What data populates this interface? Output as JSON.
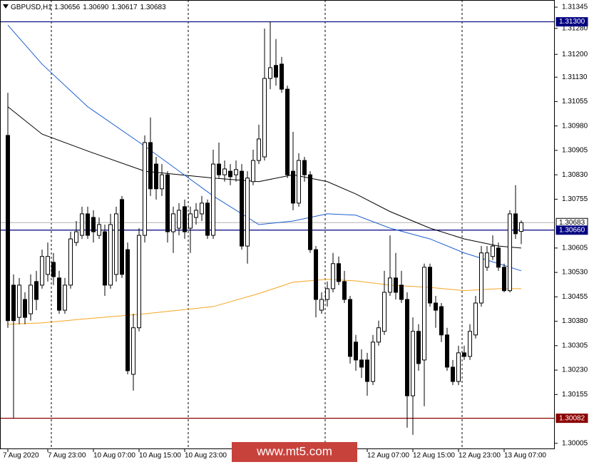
{
  "chart_data": {
    "type": "candlestick",
    "header": {
      "symbol": "GBPUSD,H1",
      "ohlc": [
        "1.30656",
        "1.30690",
        "1.30617",
        "1.30683"
      ]
    },
    "watermark": "www.mt5.com",
    "up_color": "#ffffff",
    "down_color": "#000000",
    "categories": [
      "7 Aug 2020",
      null,
      null,
      null,
      null,
      null,
      null,
      "7 Aug 23:00",
      null,
      null,
      null,
      null,
      null,
      null,
      null,
      "10 Aug 07:00",
      null,
      null,
      null,
      null,
      null,
      null,
      null,
      "10 Aug 15:00",
      null,
      null,
      null,
      null,
      null,
      null,
      null,
      "10 Aug 23:00",
      null,
      null,
      null,
      null,
      null,
      null,
      null,
      null,
      null,
      null,
      null,
      null,
      null,
      null,
      null,
      null,
      null,
      null,
      null,
      null,
      null,
      null,
      null,
      null,
      null,
      null,
      null,
      null,
      null,
      null,
      null,
      "12 Aug 07:00",
      null,
      null,
      null,
      null,
      null,
      null,
      null,
      "12 Aug 15:00",
      null,
      null,
      null,
      null,
      null,
      null,
      null,
      "12 Aug 23:00",
      null,
      null,
      null,
      null,
      null,
      null,
      null,
      "13 Aug 07:00",
      null,
      null,
      null
    ],
    "ohlc": [
      [
        1.30951,
        1.31082,
        1.3036,
        1.30382
      ],
      [
        1.30491,
        1.30524,
        1.30082,
        1.30382
      ],
      [
        1.30392,
        1.30513,
        1.30371,
        1.30491
      ],
      [
        1.30447,
        1.30469,
        1.30371,
        1.30392
      ],
      [
        1.30403,
        1.30524,
        1.30382,
        1.30491
      ],
      [
        1.30502,
        1.30535,
        1.30414,
        1.30447
      ],
      [
        1.30491,
        1.306,
        1.3048,
        1.30579
      ],
      [
        1.30524,
        1.30622,
        1.30502,
        1.30579
      ],
      [
        1.30561,
        1.3059,
        1.30491,
        1.30517
      ],
      [
        1.30513,
        1.30535,
        1.30403,
        1.30414
      ],
      [
        1.30414,
        1.30513,
        1.30403,
        1.30491
      ],
      [
        1.30491,
        1.30655,
        1.3048,
        1.30633
      ],
      [
        1.30622,
        1.30688,
        1.30611,
        1.30655
      ],
      [
        1.30644,
        1.30732,
        1.30633,
        1.3071
      ],
      [
        1.3071,
        1.30732,
        1.30633,
        1.30644
      ],
      [
        1.30699,
        1.30721,
        1.30622,
        1.30655
      ],
      [
        1.30644,
        1.30699,
        1.30633,
        1.30677
      ],
      [
        1.30655,
        1.30677,
        1.30458,
        1.30491
      ],
      [
        1.30491,
        1.3071,
        1.3048,
        1.30677
      ],
      [
        1.30524,
        1.30732,
        1.30502,
        1.3071
      ],
      [
        1.30754,
        1.30765,
        1.30513,
        1.30524
      ],
      [
        1.306,
        1.30622,
        1.30217,
        1.30228
      ],
      [
        1.30217,
        1.30403,
        1.30167,
        1.3036
      ],
      [
        1.3036,
        1.30666,
        1.30349,
        1.30644
      ],
      [
        1.30644,
        1.30951,
        1.30622,
        1.30929
      ],
      [
        1.30929,
        1.31006,
        1.30765,
        1.30787
      ],
      [
        1.30863,
        1.30885,
        1.30754,
        1.30787
      ],
      [
        1.30787,
        1.30863,
        1.30765,
        1.3083
      ],
      [
        1.3083,
        1.30841,
        1.30622,
        1.30655
      ],
      [
        1.30655,
        1.30732,
        1.3059,
        1.3071
      ],
      [
        1.30666,
        1.30743,
        1.30644,
        1.30721
      ],
      [
        1.30732,
        1.30754,
        1.30633,
        1.30655
      ],
      [
        1.30666,
        1.30732,
        1.3059,
        1.3071
      ],
      [
        1.30699,
        1.30743,
        1.30677,
        1.30721
      ],
      [
        1.3071,
        1.30765,
        1.30688,
        1.30743
      ],
      [
        1.30743,
        1.30754,
        1.30633,
        1.30644
      ],
      [
        1.30644,
        1.30907,
        1.30633,
        1.30863
      ],
      [
        1.30863,
        1.30929,
        1.3082,
        1.3083
      ],
      [
        1.3083,
        1.30874,
        1.30809,
        1.30848
      ],
      [
        1.30841,
        1.30863,
        1.30798,
        1.30824
      ],
      [
        1.3083,
        1.30874,
        1.30809,
        1.30846
      ],
      [
        1.30841,
        1.30863,
        1.306,
        1.30611
      ],
      [
        1.30611,
        1.30841,
        1.30557,
        1.3082
      ],
      [
        1.30809,
        1.30907,
        1.30798,
        1.30874
      ],
      [
        1.30874,
        1.30984,
        1.30863,
        1.3094
      ],
      [
        1.30885,
        1.31279,
        1.30874,
        1.31126
      ],
      [
        1.31126,
        1.31301,
        1.31093,
        1.31159
      ],
      [
        1.31166,
        1.31247,
        1.31104,
        1.3113
      ],
      [
        1.3117,
        1.31192,
        1.31082,
        1.31093
      ],
      [
        1.31093,
        1.31104,
        1.3082,
        1.3083
      ],
      [
        1.30841,
        1.30962,
        1.30721,
        1.30743
      ],
      [
        1.30743,
        1.30896,
        1.30732,
        1.30874
      ],
      [
        1.30874,
        1.30885,
        1.30809,
        1.3083
      ],
      [
        1.3083,
        1.30841,
        1.3059,
        1.306
      ],
      [
        1.306,
        1.30611,
        1.30392,
        1.30447
      ],
      [
        1.30414,
        1.30469,
        1.30403,
        1.30447
      ],
      [
        1.30447,
        1.30502,
        1.30425,
        1.3048
      ],
      [
        1.3048,
        1.3059,
        1.30469,
        1.30557
      ],
      [
        1.30557,
        1.30579,
        1.30491,
        1.30502
      ],
      [
        1.30502,
        1.30535,
        1.30436,
        1.30447
      ],
      [
        1.30447,
        1.30458,
        1.3025,
        1.30272
      ],
      [
        1.30316,
        1.30338,
        1.30228,
        1.30261
      ],
      [
        1.30261,
        1.30294,
        1.30206,
        1.30239
      ],
      [
        1.30261,
        1.30283,
        1.30151,
        1.30195
      ],
      [
        1.30195,
        1.30338,
        1.30184,
        1.30316
      ],
      [
        1.30316,
        1.30382,
        1.30305,
        1.3036
      ],
      [
        1.30349,
        1.30535,
        1.30338,
        1.30469
      ],
      [
        1.30469,
        1.30644,
        1.30458,
        1.30513
      ],
      [
        1.30513,
        1.3059,
        1.30447,
        1.30469
      ],
      [
        1.30491,
        1.30535,
        1.30436,
        1.30447
      ],
      [
        1.30447,
        1.30469,
        1.30053,
        1.30151
      ],
      [
        1.30151,
        1.30392,
        1.30031,
        1.30349
      ],
      [
        1.30349,
        1.30371,
        1.30228,
        1.3025
      ],
      [
        1.30261,
        1.30557,
        1.30119,
        1.30546
      ],
      [
        1.30546,
        1.30557,
        1.30425,
        1.30436
      ],
      [
        1.30436,
        1.30458,
        1.3036,
        1.30414
      ],
      [
        1.30425,
        1.30436,
        1.30316,
        1.30338
      ],
      [
        1.30338,
        1.3036,
        1.30228,
        1.30239
      ],
      [
        1.30239,
        1.30261,
        1.30184,
        1.30195
      ],
      [
        1.30195,
        1.30305,
        1.30184,
        1.30283
      ],
      [
        1.30283,
        1.30305,
        1.30261,
        1.30272
      ],
      [
        1.30272,
        1.30371,
        1.30261,
        1.30349
      ],
      [
        1.30338,
        1.30458,
        1.30327,
        1.30436
      ],
      [
        1.30436,
        1.30611,
        1.30425,
        1.3059
      ],
      [
        1.30546,
        1.30611,
        1.30535,
        1.3059
      ],
      [
        1.30579,
        1.30644,
        1.30568,
        1.30611
      ],
      [
        1.30605,
        1.30622,
        1.30535,
        1.30546
      ],
      [
        1.30546,
        1.30557,
        1.30469,
        1.30474
      ],
      [
        1.30474,
        1.30721,
        1.30469,
        1.3071
      ],
      [
        1.3071,
        1.30798,
        1.30633,
        1.30649
      ],
      [
        1.30656,
        1.3069,
        1.30617,
        1.30683
      ]
    ],
    "indicators": [
      {
        "color": "#000000",
        "x": [
          0,
          6,
          14,
          24,
          36,
          44,
          50,
          56,
          61,
          67,
          74,
          80,
          86,
          90
        ],
        "values": [
          1.31039,
          1.30955,
          1.30903,
          1.30841,
          1.3082,
          1.30809,
          1.3083,
          1.30809,
          1.30771,
          1.30717,
          1.30666,
          1.30633,
          1.30611,
          1.30605
        ]
      },
      {
        "color": "#1e5fd0",
        "x": [
          0,
          6,
          14,
          24,
          36,
          44,
          50,
          56,
          61,
          67,
          74,
          80,
          86,
          90
        ],
        "values": [
          1.3129,
          1.3117,
          1.31039,
          1.30918,
          1.30765,
          1.30677,
          1.30688,
          1.3071,
          1.30706,
          1.30666,
          1.30633,
          1.3059,
          1.30557,
          1.30535
        ]
      },
      {
        "color": "#f5a623",
        "x": [
          0,
          6,
          14,
          24,
          36,
          44,
          50,
          56,
          61,
          67,
          74,
          80,
          86,
          90
        ],
        "values": [
          1.30371,
          1.30375,
          1.30388,
          1.30403,
          1.30425,
          1.30465,
          1.305,
          1.30509,
          1.30504,
          1.30491,
          1.30484,
          1.30474,
          1.3048,
          1.3048
        ]
      }
    ],
    "price_lines": [
      {
        "value": 1.313,
        "label": "1.31300",
        "color": "#000080"
      },
      {
        "value": 1.30683,
        "label": "1.30683",
        "color": "#c0c0c0"
      },
      {
        "value": 1.3066,
        "label": "1.30660",
        "color": "#000080"
      },
      {
        "value": 1.30082,
        "label": "1.30082",
        "color": "#8b0000"
      }
    ],
    "ylim": [
      1.29987,
      1.31367
    ],
    "yticks": [
      1.31345,
      {
        "value": 1.3128,
        "label": "1.31280"
      },
      {
        "value": 1.312,
        "label": "1.31200"
      },
      {
        "value": 1.3113,
        "label": "1.31130"
      },
      1.31055,
      {
        "value": 1.3098,
        "label": "1.30980"
      },
      1.30905,
      {
        "value": 1.3083,
        "label": "1.30830"
      },
      1.30755,
      1.30605,
      {
        "value": 1.3053,
        "label": "1.30530"
      },
      1.30455,
      {
        "value": 1.3038,
        "label": "1.30380"
      },
      1.30305,
      {
        "value": 1.3023,
        "label": "1.30230"
      },
      1.30155,
      1.30005
    ]
  }
}
